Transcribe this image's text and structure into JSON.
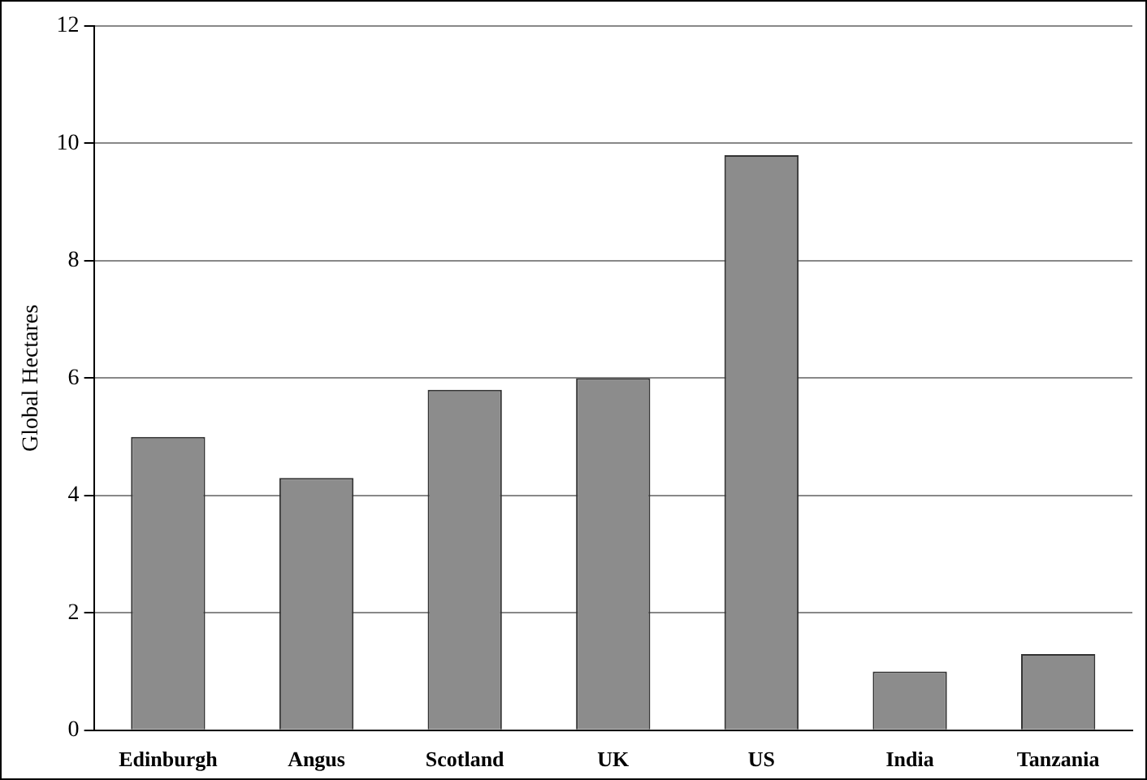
{
  "chart_data": {
    "type": "bar",
    "ylabel": "Global Hectares",
    "categories": [
      "Edinburgh",
      "Angus",
      "Scotland",
      "UK",
      "US",
      "India",
      "Tanzania"
    ],
    "values": [
      5.0,
      4.3,
      5.8,
      6.0,
      9.8,
      1.0,
      1.3
    ],
    "color": "#8c8c8c",
    "ylim": [
      0,
      12
    ],
    "yticks": [
      0,
      2,
      4,
      6,
      8,
      10,
      12
    ],
    "grid": "y"
  }
}
